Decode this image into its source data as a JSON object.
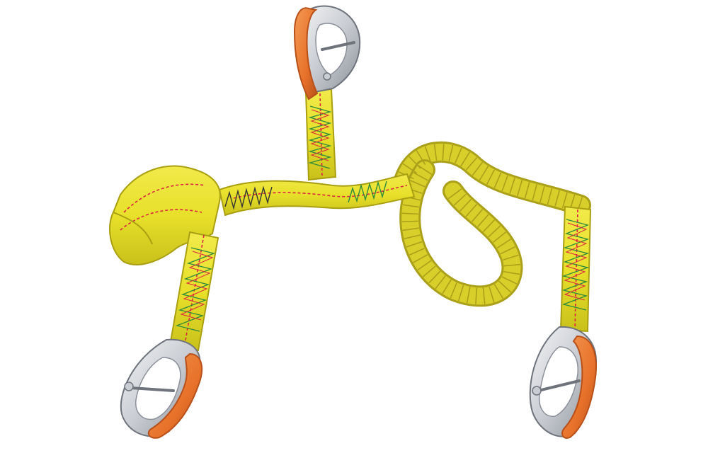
{
  "image": {
    "subject": "safety-tether",
    "colors": {
      "background": "#ffffff",
      "webbing": "#e8e02a",
      "webbing_shade": "#c9c11a",
      "webbing_edge": "#a99f12",
      "elastic": "#d9cf2a",
      "elastic_shade": "#aaa01a",
      "stitch_red": "#d7263d",
      "stitch_green": "#2e8b3a",
      "stitch_black": "#333333",
      "hook_metal": "#d8dbe0",
      "hook_metal_dark": "#8b9099",
      "hook_orange": "#e8722a",
      "hook_orange_dark": "#b8501a"
    }
  }
}
